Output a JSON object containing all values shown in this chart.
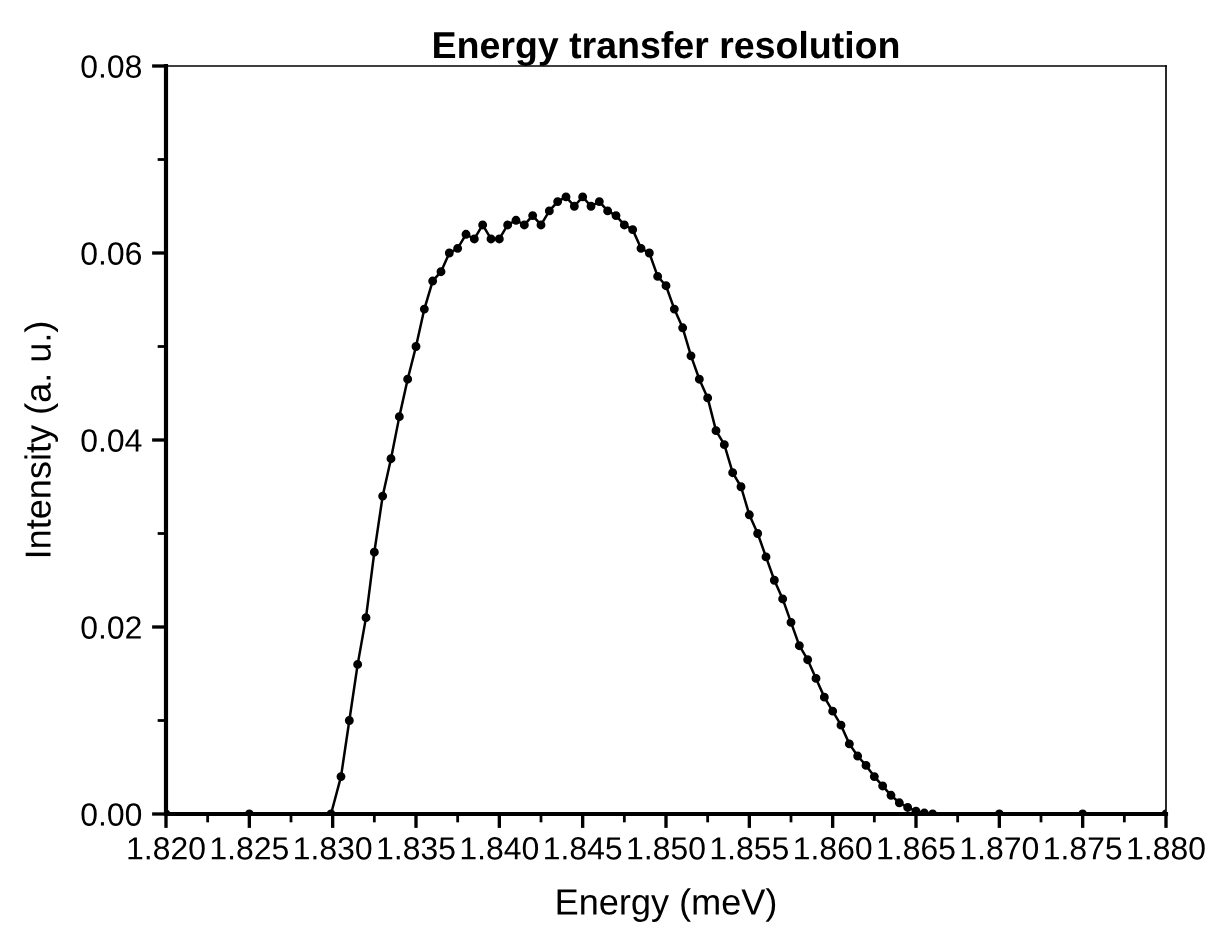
{
  "chart_data": {
    "type": "line",
    "title": "Energy transfer resolution",
    "xlabel": "Energy (meV)",
    "ylabel": "Intensity (a. u.)",
    "x": [
      1.82,
      1.825,
      1.8299,
      1.8305,
      1.831,
      1.8315,
      1.832,
      1.8325,
      1.833,
      1.8335,
      1.834,
      1.8345,
      1.835,
      1.8355,
      1.836,
      1.8365,
      1.837,
      1.8375,
      1.838,
      1.8385,
      1.839,
      1.8395,
      1.84,
      1.8405,
      1.841,
      1.8415,
      1.842,
      1.8425,
      1.843,
      1.8435,
      1.844,
      1.8445,
      1.845,
      1.8455,
      1.846,
      1.8465,
      1.847,
      1.8475,
      1.848,
      1.8485,
      1.849,
      1.8495,
      1.85,
      1.8505,
      1.851,
      1.8515,
      1.852,
      1.8525,
      1.853,
      1.8535,
      1.854,
      1.8545,
      1.855,
      1.8555,
      1.856,
      1.8565,
      1.857,
      1.8575,
      1.858,
      1.8585,
      1.859,
      1.8595,
      1.86,
      1.8605,
      1.861,
      1.8615,
      1.862,
      1.8625,
      1.863,
      1.8635,
      1.864,
      1.8645,
      1.865,
      1.8655,
      1.866,
      1.87,
      1.875,
      1.88
    ],
    "series": [
      {
        "color": "#000000",
        "values": [
          0,
          0,
          0,
          0.004,
          0.01,
          0.016,
          0.021,
          0.028,
          0.034,
          0.038,
          0.0425,
          0.0465,
          0.05,
          0.054,
          0.057,
          0.058,
          0.06,
          0.0605,
          0.062,
          0.0615,
          0.063,
          0.0615,
          0.0615,
          0.063,
          0.0635,
          0.063,
          0.064,
          0.063,
          0.0645,
          0.0655,
          0.066,
          0.065,
          0.066,
          0.065,
          0.0655,
          0.0645,
          0.064,
          0.063,
          0.0625,
          0.0605,
          0.06,
          0.0575,
          0.0565,
          0.054,
          0.052,
          0.049,
          0.0465,
          0.0445,
          0.041,
          0.0395,
          0.0365,
          0.035,
          0.032,
          0.03,
          0.0275,
          0.025,
          0.023,
          0.0205,
          0.018,
          0.0165,
          0.0145,
          0.0125,
          0.011,
          0.0095,
          0.0075,
          0.0062,
          0.0052,
          0.004,
          0.003,
          0.002,
          0.0012,
          0.0007,
          0.0003,
          0.0001,
          0,
          0,
          0,
          0
        ]
      }
    ],
    "xlim": [
      1.82,
      1.88
    ],
    "xticks": [
      {
        "value": 1.82,
        "label": "1.820"
      },
      {
        "value": 1.825,
        "label": "1.825"
      },
      {
        "value": 1.83,
        "label": "1.830"
      },
      {
        "value": 1.835,
        "label": "1.835"
      },
      {
        "value": 1.84,
        "label": "1.840"
      },
      {
        "value": 1.845,
        "label": "1.845"
      },
      {
        "value": 1.85,
        "label": "1.850"
      },
      {
        "value": 1.855,
        "label": "1.855"
      },
      {
        "value": 1.86,
        "label": "1.860"
      },
      {
        "value": 1.865,
        "label": "1.865"
      },
      {
        "value": 1.87,
        "label": "1.870"
      },
      {
        "value": 1.875,
        "label": "1.875"
      },
      {
        "value": 1.88,
        "label": "1.880"
      }
    ],
    "ylim": [
      0,
      0.08
    ],
    "yticks": [
      {
        "value": 0,
        "label": "0.00"
      },
      {
        "value": 0.02,
        "label": "0.02"
      },
      {
        "value": 0.04,
        "label": "0.04"
      },
      {
        "value": 0.06,
        "label": "0.06"
      },
      {
        "value": 0.08,
        "label": "0.08"
      }
    ],
    "marker": "circle",
    "line_style": "solid",
    "grid": false,
    "legend": false
  }
}
